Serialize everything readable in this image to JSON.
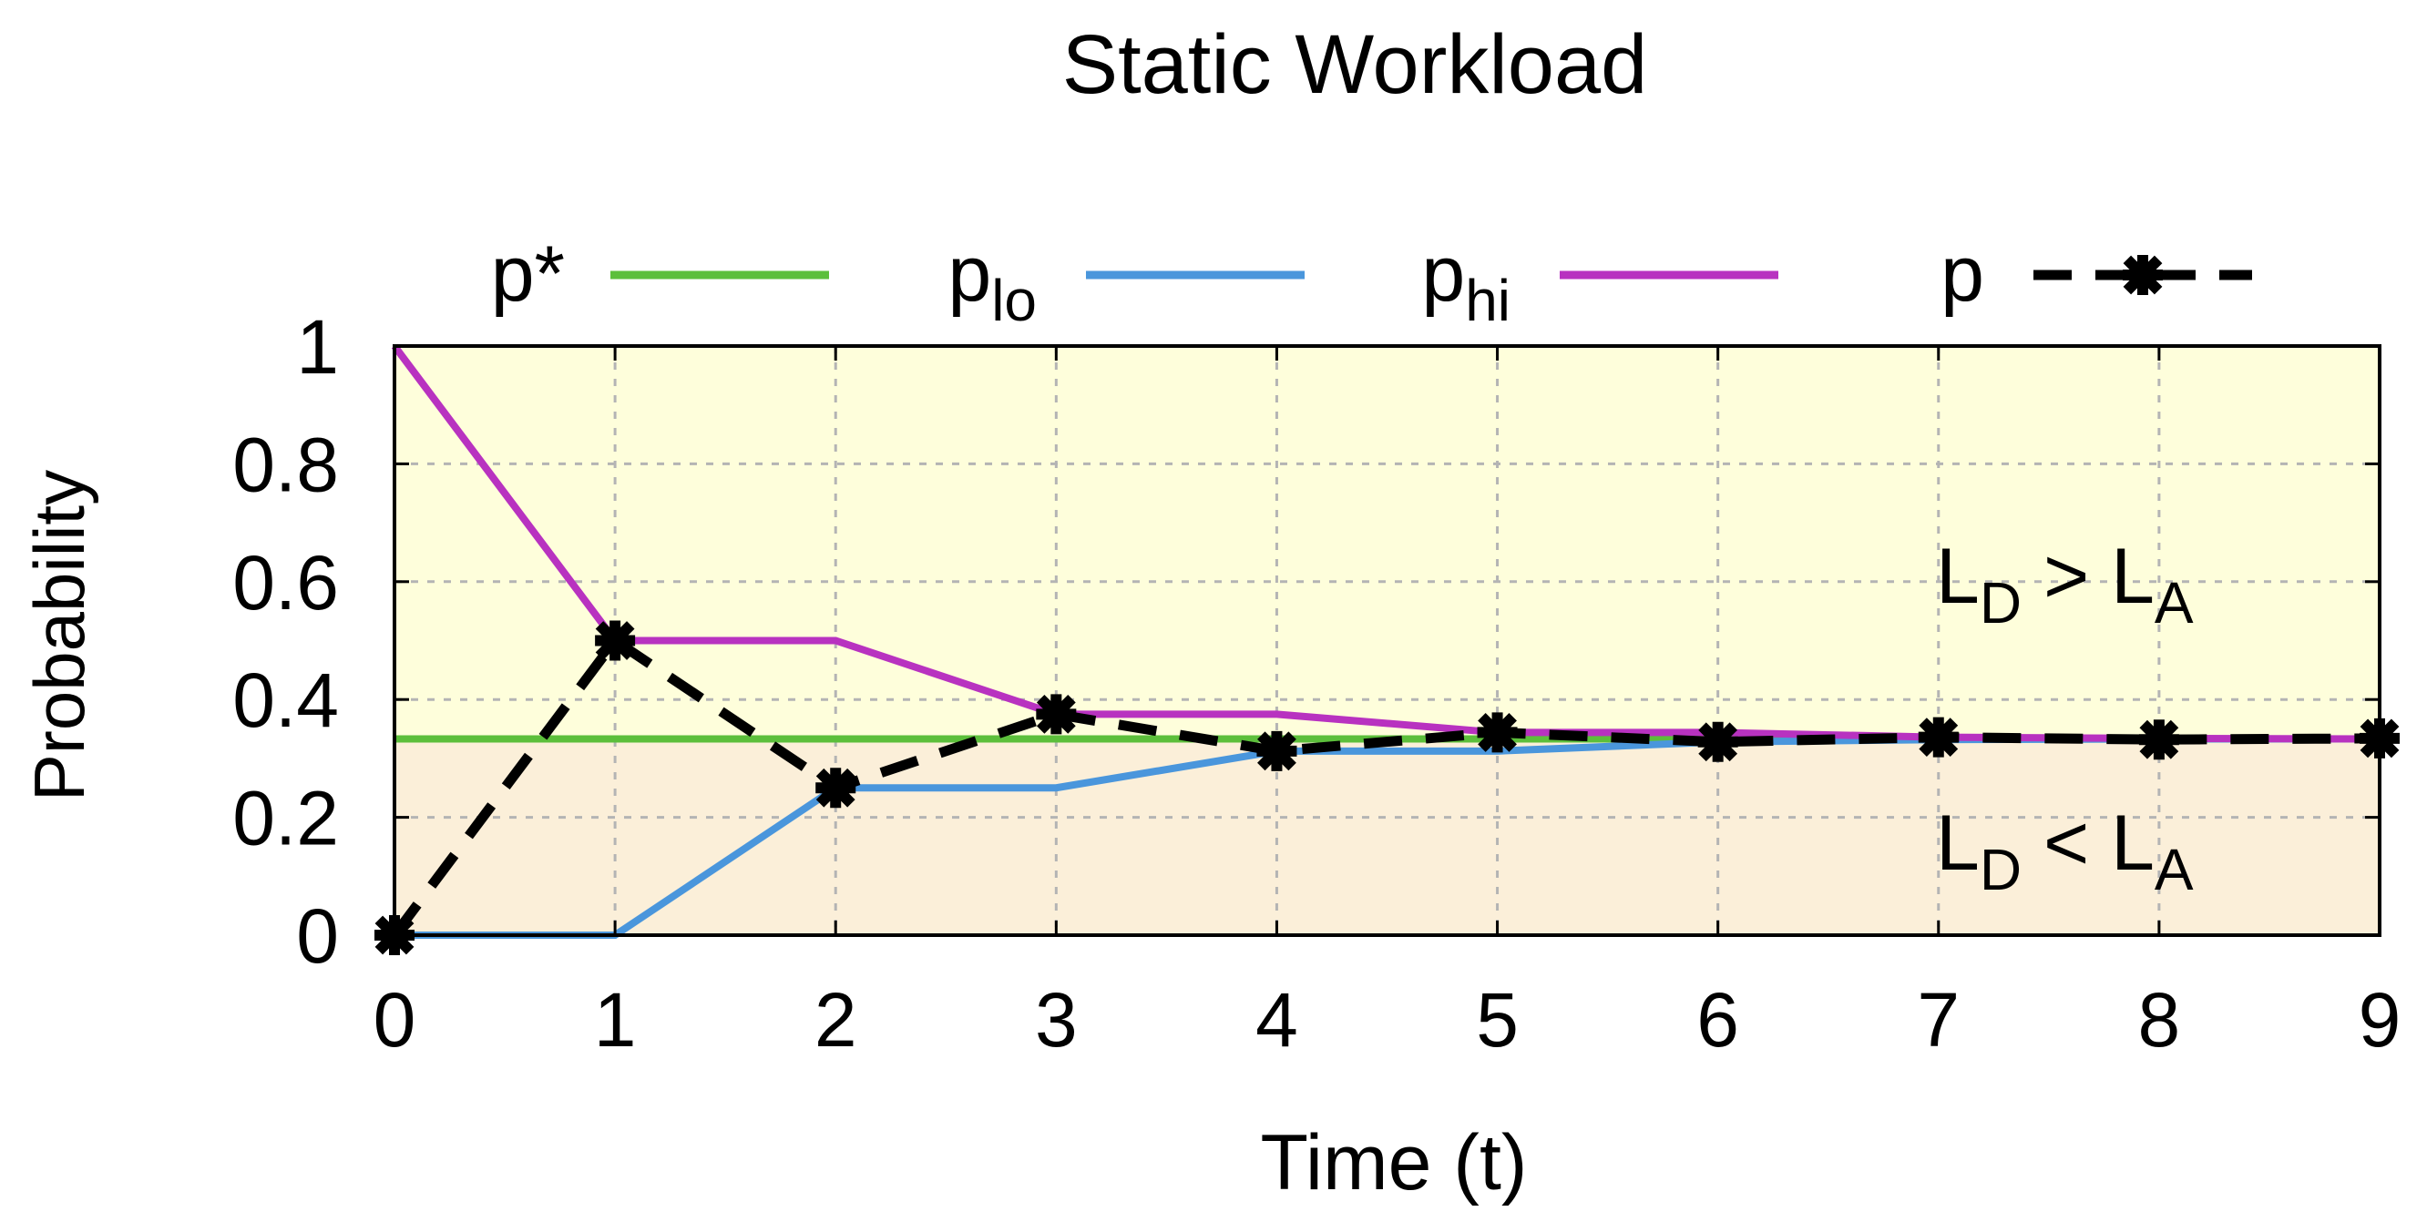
{
  "chart_data": {
    "type": "line",
    "title": "Static Workload",
    "xlabel": "Time (t)",
    "ylabel": "Probability",
    "xlim": [
      0,
      9
    ],
    "ylim": [
      0,
      1
    ],
    "x_ticks": [
      0,
      1,
      2,
      3,
      4,
      5,
      6,
      7,
      8,
      9
    ],
    "y_ticks": [
      0,
      0.2,
      0.4,
      0.6,
      0.8,
      1
    ],
    "x_tick_labels": [
      "0",
      "1",
      "2",
      "3",
      "4",
      "5",
      "6",
      "7",
      "8",
      "9"
    ],
    "y_tick_labels": [
      "0",
      "0.2",
      "0.4",
      "0.6",
      "0.8",
      "1"
    ],
    "grid": true,
    "legend_position": "top",
    "x": [
      0,
      1,
      2,
      3,
      4,
      5,
      6,
      7,
      8,
      9
    ],
    "series": [
      {
        "name": "p*",
        "color": "#5cbf3b",
        "style": "solid",
        "values": [
          0.333,
          0.333,
          0.333,
          0.333,
          0.333,
          0.333,
          0.333,
          0.333,
          0.333,
          0.333
        ]
      },
      {
        "name": "p_lo",
        "color": "#4a96dc",
        "style": "solid",
        "values": [
          0,
          0,
          0.25,
          0.25,
          0.3125,
          0.3125,
          0.328,
          0.332,
          0.333,
          0.333
        ]
      },
      {
        "name": "p_hi",
        "color": "#b832c0",
        "style": "solid",
        "values": [
          1,
          0.5,
          0.5,
          0.375,
          0.375,
          0.344,
          0.344,
          0.336,
          0.334,
          0.333
        ]
      },
      {
        "name": "p",
        "color": "#000000",
        "style": "dashed",
        "marker": "star",
        "values": [
          0,
          0.5,
          0.25,
          0.375,
          0.3125,
          0.344,
          0.328,
          0.336,
          0.332,
          0.334
        ]
      }
    ],
    "legend": [
      {
        "main": "p*",
        "sub": ""
      },
      {
        "main": "p",
        "sub": "lo"
      },
      {
        "main": "p",
        "sub": "hi"
      },
      {
        "main": "p",
        "sub": ""
      }
    ],
    "regions": [
      {
        "from": 0.333,
        "to": 1,
        "color": "#fefedb",
        "label": {
          "main1": "L",
          "sub1": "D",
          "op": " > ",
          "main2": "L",
          "sub2": "A"
        }
      },
      {
        "from": 0,
        "to": 0.333,
        "color": "#fbefd9",
        "label": {
          "main1": "L",
          "sub1": "D",
          "op": " < ",
          "main2": "L",
          "sub2": "A"
        }
      }
    ]
  }
}
